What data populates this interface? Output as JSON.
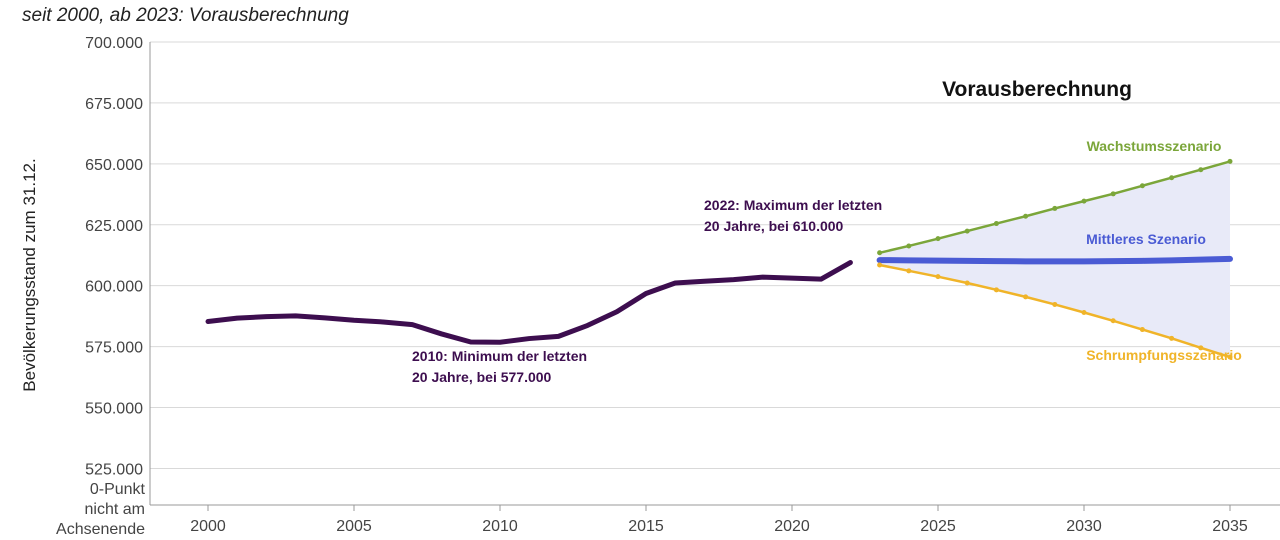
{
  "subtitle": "seit 2000, ab 2023: Vorausberechnung",
  "chart_data": {
    "type": "line",
    "ylabel": "Bevölkerungsstand zum 31.12.",
    "projection_title": "Vorausberechnung",
    "xlim": [
      2000,
      2035
    ],
    "ylim": [
      510000,
      700000
    ],
    "x_ticks": [
      "2000",
      "2005",
      "2010",
      "2015",
      "2020",
      "2025",
      "2030",
      "2035"
    ],
    "y_ticks": [
      {
        "value": 525000,
        "label": "525.000"
      },
      {
        "value": 550000,
        "label": "550.000"
      },
      {
        "value": 575000,
        "label": "575.000"
      },
      {
        "value": 600000,
        "label": "600.000"
      },
      {
        "value": 625000,
        "label": "625.000"
      },
      {
        "value": 650000,
        "label": "650.000"
      },
      {
        "value": 675000,
        "label": "675.000"
      },
      {
        "value": 700000,
        "label": "700.000"
      }
    ],
    "zero_note": [
      "0-Punkt",
      "nicht am",
      "Achsenende"
    ],
    "grid": true,
    "series": [
      {
        "color": "#3d0e4f",
        "x": [
          2000,
          2001,
          2002,
          2003,
          2004,
          2005,
          2006,
          2007,
          2008,
          2009,
          2010,
          2011,
          2012,
          2013,
          2014,
          2015,
          2016,
          2017,
          2018,
          2019,
          2020,
          2021,
          2022
        ],
        "values": [
          585300,
          586700,
          587300,
          587600,
          586800,
          585800,
          585100,
          584000,
          580200,
          576900,
          576800,
          578300,
          579200,
          583700,
          589300,
          596800,
          601100,
          601800,
          602500,
          603500,
          603100,
          602700,
          609500
        ]
      },
      {
        "name": "Wachstumsszenario",
        "color": "#7ba63a",
        "x": [
          2023,
          2024,
          2025,
          2026,
          2027,
          2028,
          2029,
          2030,
          2031,
          2032,
          2033,
          2034,
          2035
        ],
        "values": [
          613500,
          616300,
          619300,
          622400,
          625500,
          628500,
          631700,
          634700,
          637700,
          641000,
          644300,
          647600,
          651000
        ]
      },
      {
        "name": "Mittleres Szenario",
        "color": "#4a5bd4",
        "x": [
          2023,
          2024,
          2025,
          2026,
          2027,
          2028,
          2029,
          2030,
          2031,
          2032,
          2033,
          2034,
          2035
        ],
        "values": [
          610500,
          610400,
          610300,
          610200,
          610100,
          610000,
          610000,
          610000,
          610100,
          610200,
          610400,
          610700,
          611000
        ]
      },
      {
        "name": "Schrumpfungsszenario",
        "color": "#f0b429",
        "x": [
          2023,
          2024,
          2025,
          2026,
          2027,
          2028,
          2029,
          2030,
          2031,
          2032,
          2033,
          2034,
          2035
        ],
        "values": [
          608500,
          606100,
          603700,
          601100,
          598300,
          595400,
          592300,
          589000,
          585600,
          582000,
          578400,
          574500,
          570700
        ]
      }
    ],
    "band_color": "#e8eaf8",
    "annotations": [
      {
        "lines": [
          "2022: Maximum der letzten",
          "20 Jahre, bei 610.000"
        ],
        "color": "#3d0e4f"
      },
      {
        "lines": [
          "2010: Minimum der letzten",
          "20 Jahre, bei 577.000"
        ],
        "color": "#3d0e4f"
      }
    ]
  }
}
